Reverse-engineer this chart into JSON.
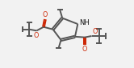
{
  "bg_color": "#f2f2f2",
  "bond_color": "#555555",
  "o_color": "#cc2200",
  "nh_color": "#111111",
  "lw": 1.4,
  "figsize": [
    1.66,
    0.85
  ],
  "dpi": 100,
  "xlim": [
    0,
    10
  ],
  "ylim": [
    0,
    5.1
  ]
}
